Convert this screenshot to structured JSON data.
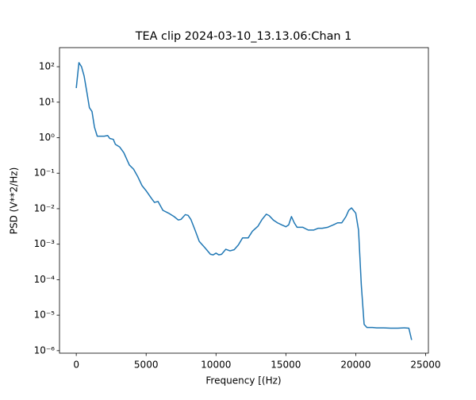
{
  "chart_data": {
    "type": "line",
    "title": "TEA clip 2024-03-10_13.13.06:Chan 1",
    "xlabel": "Frequency [(Hz)",
    "ylabel": "PSD (V**2/Hz)",
    "log_y": true,
    "x": [
      0,
      190,
      375,
      560,
      750,
      940,
      1125,
      1300,
      1500,
      2000,
      2250,
      2400,
      2650,
      2800,
      3100,
      3400,
      3800,
      4100,
      4400,
      4700,
      5000,
      5400,
      5600,
      5850,
      6200,
      6600,
      7000,
      7300,
      7500,
      7800,
      8000,
      8200,
      8500,
      8800,
      9200,
      9600,
      9800,
      10000,
      10200,
      10400,
      10700,
      11000,
      11300,
      11600,
      11900,
      12300,
      12600,
      13000,
      13300,
      13600,
      13800,
      14100,
      14400,
      14700,
      15000,
      15200,
      15400,
      15600,
      15800,
      16200,
      16600,
      17000,
      17300,
      17600,
      18000,
      18400,
      18700,
      19000,
      19300,
      19500,
      19700,
      20000,
      20200,
      20400,
      20600,
      20800,
      21200,
      21500,
      22000,
      22500,
      23000,
      23500,
      23800,
      24000
    ],
    "series": [
      {
        "name": "PSD",
        "color": "#1f77b4",
        "values": [
          25,
          130,
          100,
          55,
          20,
          7,
          5.5,
          2,
          1.1,
          1.1,
          1.15,
          0.95,
          0.9,
          0.65,
          0.55,
          0.38,
          0.17,
          0.13,
          0.08,
          0.045,
          0.032,
          0.019,
          0.015,
          0.016,
          0.009,
          0.0075,
          0.006,
          0.0048,
          0.005,
          0.0068,
          0.0065,
          0.005,
          0.0025,
          0.0012,
          0.0008,
          0.00052,
          0.0005,
          0.00056,
          0.0005,
          0.00052,
          0.00072,
          0.00065,
          0.0007,
          0.00095,
          0.0015,
          0.0015,
          0.0023,
          0.0032,
          0.005,
          0.007,
          0.0064,
          0.0048,
          0.004,
          0.0035,
          0.0031,
          0.0035,
          0.006,
          0.004,
          0.003,
          0.003,
          0.0025,
          0.0025,
          0.0028,
          0.0028,
          0.003,
          0.0035,
          0.004,
          0.004,
          0.006,
          0.009,
          0.0105,
          0.0075,
          0.0025,
          7e-05,
          5.5e-06,
          4.5e-06,
          4.5e-06,
          4.4e-06,
          4.4e-06,
          4.3e-06,
          4.3e-06,
          4.4e-06,
          4.3e-06,
          2e-06
        ]
      }
    ],
    "xlim": [
      -1200,
      25200
    ],
    "xticks": [
      0,
      5000,
      10000,
      15000,
      20000,
      25000
    ],
    "ylim": [
      8.5e-07,
      345
    ],
    "yticks": [
      {
        "value": 1e-06,
        "label": "10⁻⁶"
      },
      {
        "value": 1e-05,
        "label": "10⁻⁵"
      },
      {
        "value": 0.0001,
        "label": "10⁻⁴"
      },
      {
        "value": 0.001,
        "label": "10⁻³"
      },
      {
        "value": 0.01,
        "label": "10⁻²"
      },
      {
        "value": 0.1,
        "label": "10⁻¹"
      },
      {
        "value": 1,
        "label": "10⁰"
      },
      {
        "value": 10,
        "label": "10¹"
      },
      {
        "value": 100,
        "label": "10²"
      }
    ]
  }
}
